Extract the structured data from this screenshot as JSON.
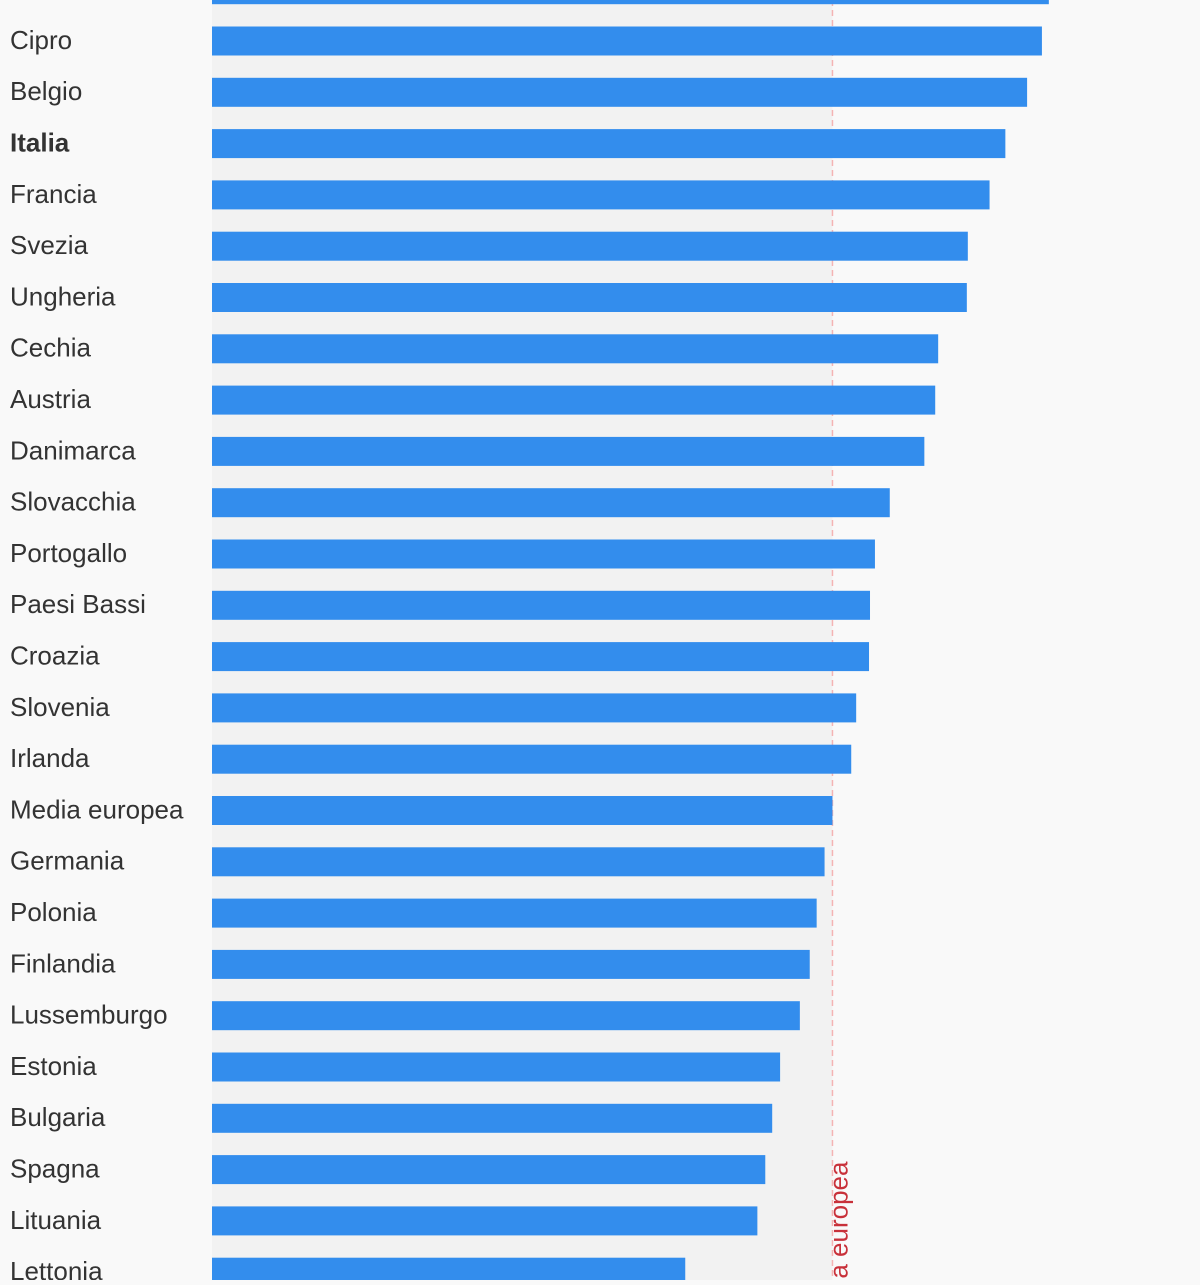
{
  "chart_data": {
    "type": "bar",
    "orientation": "horizontal",
    "categories": [
      null,
      "Cipro",
      "Belgio",
      "Italia",
      "Francia",
      "Svezia",
      "Ungheria",
      "Cechia",
      "Austria",
      "Danimarca",
      "Slovacchia",
      "Portogallo",
      "Paesi Bassi",
      "Croazia",
      "Slovenia",
      "Irlanda",
      "Media europea",
      "Germania",
      "Polonia",
      "Finlandia",
      "Lussemburgo",
      "Estonia",
      "Bulgaria",
      "Spagna",
      "Lituania",
      "Lettonia"
    ],
    "values": [
      84.7,
      84.0,
      82.5,
      80.3,
      78.7,
      76.5,
      76.4,
      73.5,
      73.2,
      72.1,
      68.6,
      67.1,
      66.6,
      66.5,
      65.2,
      64.7,
      62.8,
      62.0,
      61.2,
      60.5,
      59.5,
      57.5,
      56.7,
      56.0,
      55.2,
      47.9
    ],
    "color": "#338ded",
    "xlim": [
      0,
      100
    ],
    "highlight": "Italia",
    "reference_line": {
      "value": 62.8,
      "label": "Media europea",
      "color": "#c8313a"
    }
  }
}
